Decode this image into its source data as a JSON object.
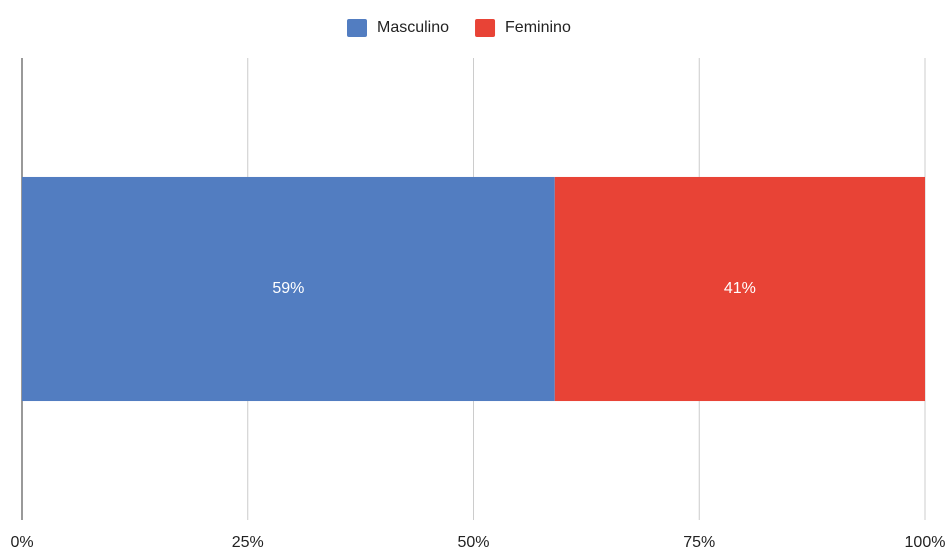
{
  "chart_data": {
    "type": "bar",
    "orientation": "horizontal",
    "stacked": true,
    "categories": [
      null
    ],
    "series": [
      {
        "name": "Masculino",
        "color": "#527dc1",
        "values": [
          59
        ],
        "value_labels": [
          "59%"
        ]
      },
      {
        "name": "Feminino",
        "color": "#e84336",
        "values": [
          41
        ],
        "value_labels": [
          "41%"
        ]
      }
    ],
    "xlim": [
      0,
      100
    ],
    "xticks": [
      {
        "value": 0,
        "label": "0%"
      },
      {
        "value": 25,
        "label": "25%"
      },
      {
        "value": 50,
        "label": "50%"
      },
      {
        "value": 75,
        "label": "75%"
      },
      {
        "value": 100,
        "label": "100%"
      }
    ],
    "grid": true,
    "legend": "top"
  }
}
